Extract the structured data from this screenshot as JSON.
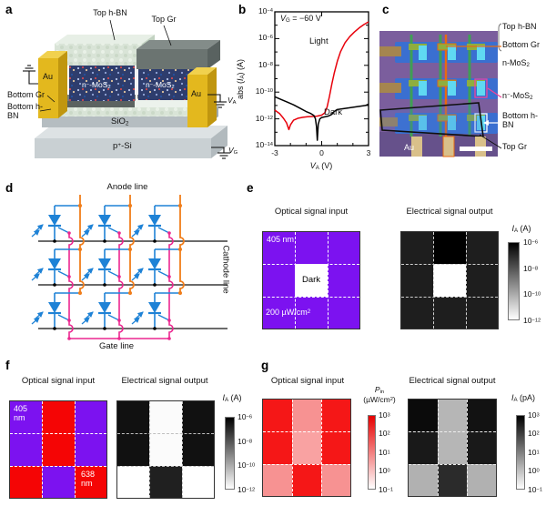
{
  "panels": {
    "a": {
      "label": "a",
      "top_hbn": "Top h-BN",
      "top_gr": "Top Gr",
      "au_left": "Au",
      "au_right": "Au",
      "bottom_gr": "Bottom Gr",
      "bottom_hbn": "Bottom h-BN",
      "mos2_left": "n^−^-MoS~2~",
      "mos2_right": "n^−^-MoS~2~",
      "sio2": "SiO~2~",
      "p_si": "p^+^-Si",
      "v_a": "*V*~A~",
      "v_g": "*V*~G~"
    },
    "b": {
      "label": "b"
    },
    "c": {
      "label": "c",
      "top_hbn": "Top h-BN",
      "bottom_gr": "Bottom Gr",
      "n_mos2": "n-MoS~2~",
      "n_minus_mos2": "n^−^-MoS~2~",
      "bottom_hbn": "Bottom h-BN",
      "top_gr": "Top Gr",
      "au": "Au"
    },
    "d": {
      "label": "d",
      "anode": "Anode line",
      "cathode": "Cathode line",
      "gate": "Gate line"
    },
    "e": {
      "label": "e",
      "input": {
        "title": "Optical signal input",
        "dash": "#ffffff",
        "cells": [
          [
            "#7c12f0",
            "#7c12f0",
            "#7c12f0"
          ],
          [
            "#7c12f0",
            "#ffffff",
            "#7c12f0"
          ],
          [
            "#7c12f0",
            "#7c12f0",
            "#7c12f0"
          ]
        ],
        "ann_wavelength": "405 nm",
        "ann_center": "Dark",
        "ann_power": "200 µW/cm^2^"
      },
      "output": {
        "title": "Electrical signal output",
        "dash": "#cfcfcf",
        "cells": [
          [
            "#1e1e1e",
            "#000000",
            "#1e1e1e"
          ],
          [
            "#1e1e1e",
            "#ffffff",
            "#1e1e1e"
          ],
          [
            "#1e1e1e",
            "#1e1e1e",
            "#1e1e1e"
          ]
        ]
      },
      "colorbar": {
        "title": "*I*~A~ (A)",
        "gradient": [
          "#000000",
          "#ffffff"
        ],
        "ticks": [
          "10^−6^",
          "10^−8^",
          "10^−10^",
          "10^−12^"
        ]
      }
    },
    "f": {
      "label": "f",
      "input": {
        "title": "Optical signal input",
        "dash": "#ffffff",
        "cells": [
          [
            "#7c12f0",
            "#f50505",
            "#7c12f0"
          ],
          [
            "#7c12f0",
            "#f50505",
            "#7c12f0"
          ],
          [
            "#f50505",
            "#7c12f0",
            "#f50505"
          ]
        ],
        "ann_tl": "405 nm",
        "ann_br": "638 nm"
      },
      "output": {
        "title": "Electrical signal output",
        "dash": "#bfbfbf",
        "cells": [
          [
            "#111111",
            "#fbfbfb",
            "#111111"
          ],
          [
            "#111111",
            "#fbfbfb",
            "#111111"
          ],
          [
            "#ffffff",
            "#202020",
            "#ffffff"
          ]
        ]
      },
      "colorbar": {
        "title": "*I*~A~ (A)",
        "gradient": [
          "#000000",
          "#ffffff"
        ],
        "ticks": [
          "10^−6^",
          "10^−8^",
          "10^−10^",
          "10^−12^"
        ]
      }
    },
    "g": {
      "label": "g",
      "input": {
        "title": "Optical signal input",
        "dash": "#ffffff",
        "cells": [
          [
            "#f51717",
            "#f79292",
            "#f51717"
          ],
          [
            "#f51717",
            "#f9a2a2",
            "#f51717"
          ],
          [
            "#f79292",
            "#f51717",
            "#f79292"
          ]
        ]
      },
      "input_colorbar": {
        "title": "*P*~in~\n(µW/cm^2^)",
        "gradient": [
          "#e60000",
          "#ffffff"
        ],
        "ticks": [
          "10^3^",
          "10^2^",
          "10^1^",
          "10^0^",
          "10^−1^"
        ]
      },
      "output": {
        "title": "Electrical signal output",
        "dash": "#eeeeee",
        "cells": [
          [
            "#0b0b0b",
            "#b6b6b6",
            "#121212"
          ],
          [
            "#191919",
            "#b6b6b6",
            "#191919"
          ],
          [
            "#b1b1b1",
            "#2b2b2b",
            "#b1b1b1"
          ]
        ]
      },
      "output_colorbar": {
        "title": "*I*~A~ (pA)",
        "gradient": [
          "#000000",
          "#ffffff"
        ],
        "ticks": [
          "10^3^",
          "10^2^",
          "10^1^",
          "10^0^",
          "10^−1^"
        ]
      }
    }
  },
  "chart_data": {
    "type": "line",
    "annotation": "*V*~G~ = −60 V",
    "xlabel": "*V*~A~ (V)",
    "ylabel": "abs (*I*~A~) (A)",
    "xlim": [
      -3,
      3
    ],
    "ylog_lim": [
      -14,
      -4
    ],
    "xticks": [
      -3,
      0,
      3
    ],
    "xticks_minor": [
      -2,
      -1,
      1,
      2
    ],
    "yticks_log": [
      -4,
      -6,
      -8,
      -10,
      -12,
      -14
    ],
    "ytick_labels": [
      "10^−4^",
      "10^−6^",
      "10^−8^",
      "10^−10^",
      "10^−12^",
      "10^−14^"
    ],
    "grid": false,
    "legend_position": "inline",
    "series": [
      {
        "name": "Light",
        "color": "#e8000b",
        "x": [
          -3,
          -2.7,
          -2.45,
          -2.25,
          -2.1,
          -2,
          -1.8,
          -1.5,
          -1.2,
          -0.9,
          -0.6,
          -0.3,
          0,
          0.2,
          0.35,
          0.5,
          0.65,
          0.8,
          1,
          1.2,
          1.5,
          1.8,
          2.1,
          2.4,
          2.7,
          3
        ],
        "log10_y": [
          -11.35,
          -11.6,
          -11.95,
          -12.3,
          -12.8,
          -12.45,
          -12.1,
          -11.95,
          -11.88,
          -11.84,
          -11.82,
          -11.8,
          -11.72,
          -11.55,
          -11.1,
          -10.3,
          -9.4,
          -8.6,
          -7.7,
          -7.0,
          -6.3,
          -5.85,
          -5.5,
          -5.2,
          -4.95,
          -4.75
        ]
      },
      {
        "name": "Dark",
        "color": "#000000",
        "x": [
          -3,
          -2.6,
          -2.2,
          -1.8,
          -1.4,
          -1,
          -0.7,
          -0.5,
          -0.4,
          -0.33,
          -0.28,
          -0.22,
          -0.12,
          0,
          0.2,
          0.4,
          0.6,
          0.8,
          1,
          1.3,
          1.6,
          1.9,
          2.2,
          2.5,
          2.8,
          3
        ],
        "log10_y": [
          -10.35,
          -10.55,
          -10.75,
          -10.95,
          -11.2,
          -11.45,
          -11.6,
          -11.75,
          -12.0,
          -12.6,
          -13.6,
          -12.4,
          -12.0,
          -11.9,
          -11.85,
          -11.8,
          -11.7,
          -11.45,
          -11.3,
          -11.25,
          -11.2,
          -11.15,
          -11.1,
          -11.05,
          -11.0,
          -10.9
        ]
      }
    ]
  }
}
